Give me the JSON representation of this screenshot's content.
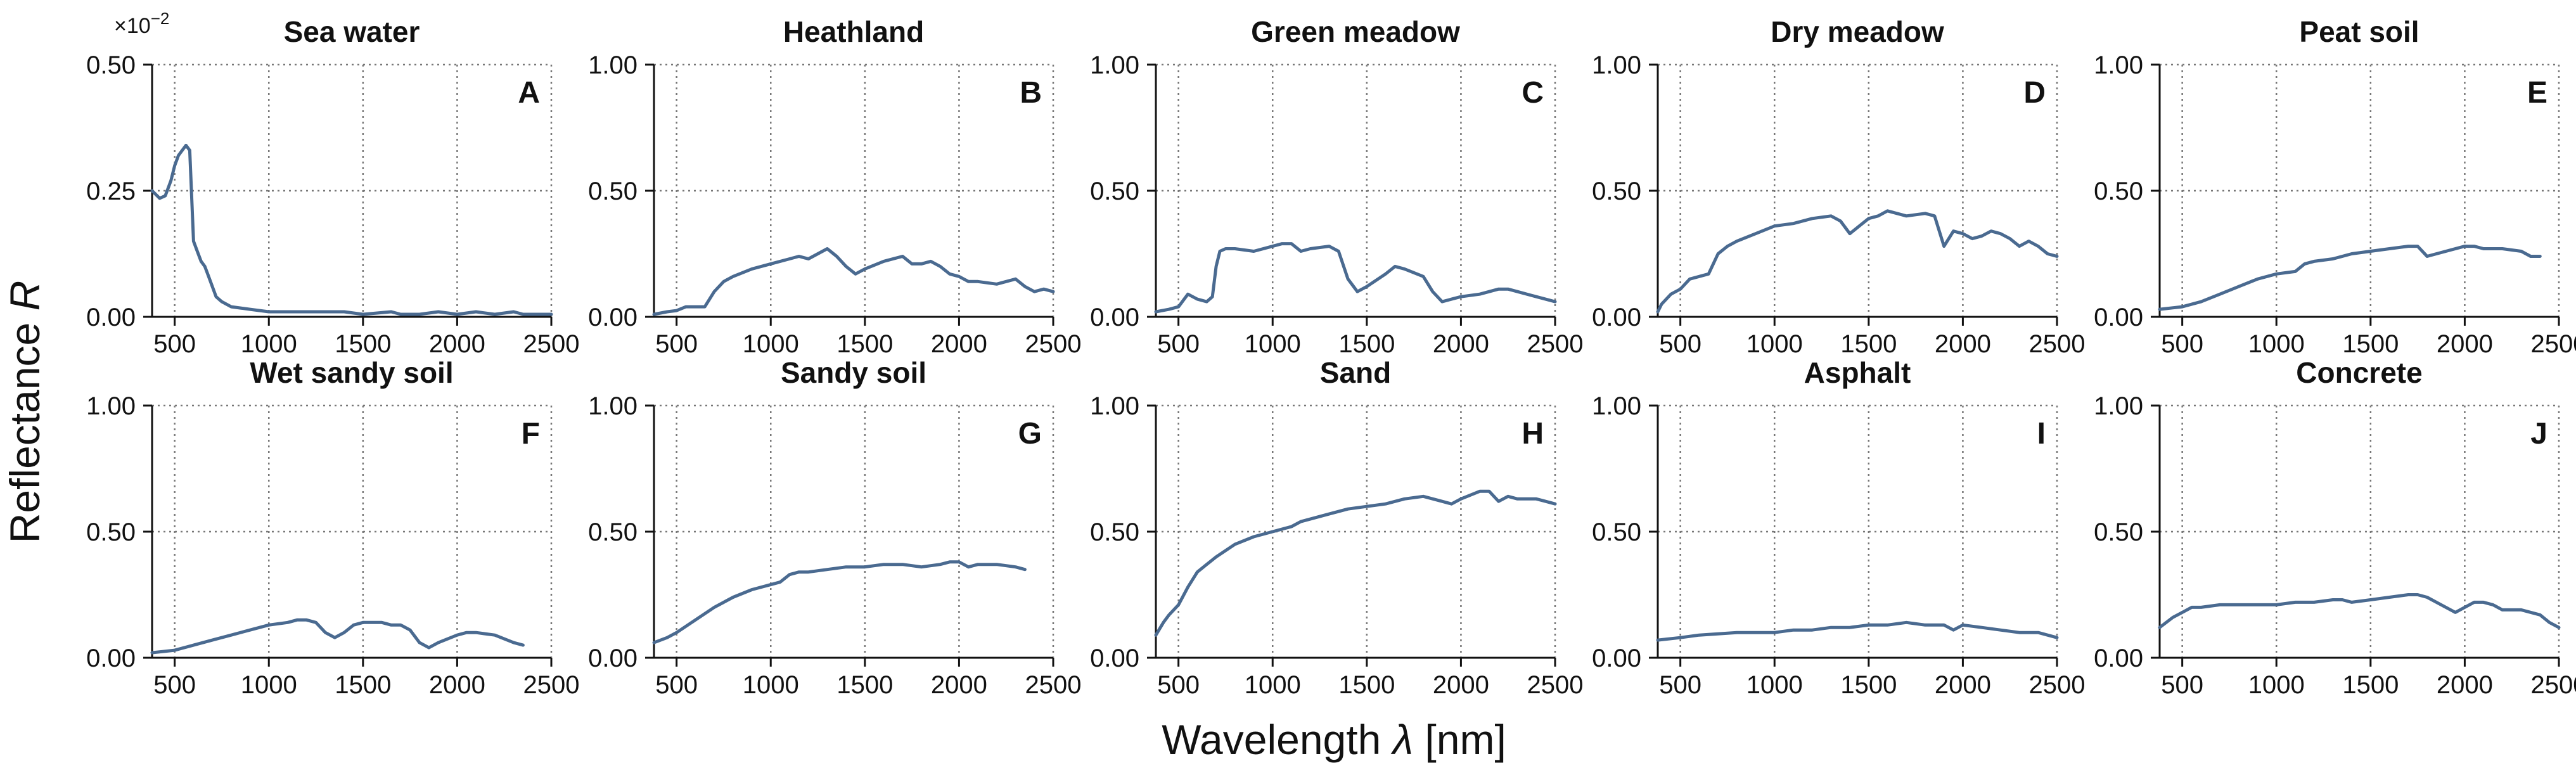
{
  "figure": {
    "xlabel_prefix": "Wavelength ",
    "xlabel_symbol": "λ",
    "xlabel_unit": " [nm]",
    "ylabel_prefix": "Reflectance ",
    "ylabel_symbol": "R",
    "line_color": "#4a6a90"
  },
  "chart_data": [
    {
      "type": "line",
      "id": "A",
      "letter": "A",
      "title": "Sea water",
      "xlim": [
        380,
        2500
      ],
      "ylim": [
        0,
        0.5
      ],
      "yticks": [
        "0.00",
        "0.25",
        "0.50"
      ],
      "ytick_values": [
        0,
        0.25,
        0.5
      ],
      "xticks": [
        "500",
        "1000",
        "1500",
        "2000",
        "2500"
      ],
      "xtick_values": [
        500,
        1000,
        1500,
        2000,
        2500
      ],
      "multiplier": "×10",
      "multiplier_exp": "−2",
      "series": [
        {
          "name": "Sea water",
          "x": [
            380,
            420,
            450,
            480,
            500,
            520,
            540,
            560,
            580,
            600,
            620,
            640,
            660,
            680,
            700,
            720,
            750,
            800,
            900,
            1000,
            1200,
            1400,
            1500,
            1650,
            1700,
            1800,
            1900,
            2000,
            2100,
            2200,
            2300,
            2350,
            2400,
            2500
          ],
          "y": [
            0.25,
            0.235,
            0.24,
            0.27,
            0.3,
            0.32,
            0.33,
            0.34,
            0.33,
            0.15,
            0.13,
            0.11,
            0.1,
            0.08,
            0.06,
            0.04,
            0.03,
            0.02,
            0.015,
            0.01,
            0.01,
            0.01,
            0.005,
            0.01,
            0.005,
            0.005,
            0.01,
            0.005,
            0.01,
            0.005,
            0.01,
            0.005,
            0.005,
            0.005
          ]
        }
      ]
    },
    {
      "type": "line",
      "id": "B",
      "letter": "B",
      "title": "Heathland",
      "xlim": [
        380,
        2500
      ],
      "ylim": [
        0,
        1.0
      ],
      "yticks": [
        "0.00",
        "0.50",
        "1.00"
      ],
      "ytick_values": [
        0,
        0.5,
        1.0
      ],
      "xticks": [
        "500",
        "1000",
        "1500",
        "2000",
        "2500"
      ],
      "xtick_values": [
        500,
        1000,
        1500,
        2000,
        2500
      ],
      "series": [
        {
          "name": "Heathland",
          "x": [
            380,
            450,
            500,
            550,
            600,
            650,
            700,
            750,
            800,
            900,
            1000,
            1100,
            1150,
            1200,
            1300,
            1350,
            1400,
            1450,
            1500,
            1600,
            1700,
            1750,
            1800,
            1850,
            1900,
            1950,
            2000,
            2050,
            2100,
            2200,
            2300,
            2350,
            2400,
            2450,
            2500
          ],
          "y": [
            0.01,
            0.02,
            0.025,
            0.04,
            0.04,
            0.04,
            0.1,
            0.14,
            0.16,
            0.19,
            0.21,
            0.23,
            0.24,
            0.23,
            0.27,
            0.24,
            0.2,
            0.17,
            0.19,
            0.22,
            0.24,
            0.21,
            0.21,
            0.22,
            0.2,
            0.17,
            0.16,
            0.14,
            0.14,
            0.13,
            0.15,
            0.12,
            0.1,
            0.11,
            0.1
          ]
        }
      ]
    },
    {
      "type": "line",
      "id": "C",
      "letter": "C",
      "title": "Green meadow",
      "xlim": [
        380,
        2500
      ],
      "ylim": [
        0,
        1.0
      ],
      "yticks": [
        "0.00",
        "0.50",
        "1.00"
      ],
      "ytick_values": [
        0,
        0.5,
        1.0
      ],
      "xticks": [
        "500",
        "1000",
        "1500",
        "2000",
        "2500"
      ],
      "xtick_values": [
        500,
        1000,
        1500,
        2000,
        2500
      ],
      "series": [
        {
          "name": "Green meadow",
          "x": [
            380,
            450,
            500,
            550,
            600,
            650,
            680,
            700,
            720,
            750,
            800,
            900,
            1000,
            1050,
            1100,
            1150,
            1200,
            1300,
            1350,
            1400,
            1450,
            1500,
            1600,
            1650,
            1700,
            1800,
            1850,
            1900,
            1950,
            2000,
            2100,
            2200,
            2250,
            2300,
            2400,
            2500
          ],
          "y": [
            0.02,
            0.03,
            0.04,
            0.09,
            0.07,
            0.06,
            0.08,
            0.2,
            0.26,
            0.27,
            0.27,
            0.26,
            0.28,
            0.29,
            0.29,
            0.26,
            0.27,
            0.28,
            0.26,
            0.15,
            0.1,
            0.12,
            0.17,
            0.2,
            0.19,
            0.16,
            0.1,
            0.06,
            0.07,
            0.08,
            0.09,
            0.11,
            0.11,
            0.1,
            0.08,
            0.06
          ]
        }
      ]
    },
    {
      "type": "line",
      "id": "D",
      "letter": "D",
      "title": "Dry meadow",
      "xlim": [
        380,
        2500
      ],
      "ylim": [
        0,
        1.0
      ],
      "yticks": [
        "0.00",
        "0.50",
        "1.00"
      ],
      "ytick_values": [
        0,
        0.5,
        1.0
      ],
      "xticks": [
        "500",
        "1000",
        "1500",
        "2000",
        "2500"
      ],
      "xtick_values": [
        500,
        1000,
        1500,
        2000,
        2500
      ],
      "series": [
        {
          "name": "Dry meadow",
          "x": [
            380,
            400,
            450,
            500,
            550,
            600,
            650,
            700,
            750,
            800,
            900,
            1000,
            1100,
            1200,
            1300,
            1350,
            1400,
            1450,
            1500,
            1550,
            1600,
            1650,
            1700,
            1800,
            1850,
            1900,
            1950,
            2000,
            2050,
            2100,
            2150,
            2200,
            2250,
            2300,
            2350,
            2400,
            2450,
            2500
          ],
          "y": [
            0.02,
            0.05,
            0.09,
            0.11,
            0.15,
            0.16,
            0.17,
            0.25,
            0.28,
            0.3,
            0.33,
            0.36,
            0.37,
            0.39,
            0.4,
            0.38,
            0.33,
            0.36,
            0.39,
            0.4,
            0.42,
            0.41,
            0.4,
            0.41,
            0.4,
            0.28,
            0.34,
            0.33,
            0.31,
            0.32,
            0.34,
            0.33,
            0.31,
            0.28,
            0.3,
            0.28,
            0.25,
            0.24
          ]
        }
      ]
    },
    {
      "type": "line",
      "id": "E",
      "letter": "E",
      "title": "Peat soil",
      "xlim": [
        380,
        2500
      ],
      "ylim": [
        0,
        1.0
      ],
      "yticks": [
        "0.00",
        "0.50",
        "1.00"
      ],
      "ytick_values": [
        0,
        0.5,
        1.0
      ],
      "xticks": [
        "500",
        "1000",
        "1500",
        "2000",
        "2500"
      ],
      "xtick_values": [
        500,
        1000,
        1500,
        2000,
        2500
      ],
      "series": [
        {
          "name": "Peat soil",
          "x": [
            380,
            500,
            600,
            700,
            800,
            900,
            1000,
            1100,
            1150,
            1200,
            1300,
            1400,
            1500,
            1600,
            1700,
            1750,
            1800,
            1850,
            1900,
            2000,
            2050,
            2100,
            2200,
            2300,
            2350,
            2400
          ],
          "y": [
            0.03,
            0.04,
            0.06,
            0.09,
            0.12,
            0.15,
            0.17,
            0.18,
            0.21,
            0.22,
            0.23,
            0.25,
            0.26,
            0.27,
            0.28,
            0.28,
            0.24,
            0.25,
            0.26,
            0.28,
            0.28,
            0.27,
            0.27,
            0.26,
            0.24,
            0.24
          ]
        }
      ]
    },
    {
      "type": "line",
      "id": "F",
      "letter": "F",
      "title": "Wet sandy soil",
      "xlim": [
        380,
        2500
      ],
      "ylim": [
        0,
        1.0
      ],
      "yticks": [
        "0.00",
        "0.50",
        "1.00"
      ],
      "ytick_values": [
        0,
        0.5,
        1.0
      ],
      "xticks": [
        "500",
        "1000",
        "1500",
        "2000",
        "2500"
      ],
      "xtick_values": [
        500,
        1000,
        1500,
        2000,
        2500
      ],
      "series": [
        {
          "name": "Wet sandy soil",
          "x": [
            380,
            500,
            600,
            700,
            800,
            900,
            1000,
            1100,
            1150,
            1200,
            1250,
            1300,
            1350,
            1400,
            1450,
            1500,
            1600,
            1650,
            1700,
            1750,
            1800,
            1850,
            1900,
            2000,
            2050,
            2100,
            2200,
            2300,
            2350
          ],
          "y": [
            0.02,
            0.03,
            0.05,
            0.07,
            0.09,
            0.11,
            0.13,
            0.14,
            0.15,
            0.15,
            0.14,
            0.1,
            0.08,
            0.1,
            0.13,
            0.14,
            0.14,
            0.13,
            0.13,
            0.11,
            0.06,
            0.04,
            0.06,
            0.09,
            0.1,
            0.1,
            0.09,
            0.06,
            0.05
          ]
        }
      ]
    },
    {
      "type": "line",
      "id": "G",
      "letter": "G",
      "title": "Sandy soil",
      "xlim": [
        380,
        2500
      ],
      "ylim": [
        0,
        1.0
      ],
      "yticks": [
        "0.00",
        "0.50",
        "1.00"
      ],
      "ytick_values": [
        0,
        0.5,
        1.0
      ],
      "xticks": [
        "500",
        "1000",
        "1500",
        "2000",
        "2500"
      ],
      "xtick_values": [
        500,
        1000,
        1500,
        2000,
        2500
      ],
      "series": [
        {
          "name": "Sandy soil",
          "x": [
            380,
            450,
            500,
            600,
            700,
            800,
            900,
            1000,
            1050,
            1100,
            1150,
            1200,
            1300,
            1400,
            1500,
            1600,
            1700,
            1800,
            1900,
            1950,
            2000,
            2050,
            2100,
            2200,
            2300,
            2350
          ],
          "y": [
            0.06,
            0.08,
            0.1,
            0.15,
            0.2,
            0.24,
            0.27,
            0.29,
            0.3,
            0.33,
            0.34,
            0.34,
            0.35,
            0.36,
            0.36,
            0.37,
            0.37,
            0.36,
            0.37,
            0.38,
            0.38,
            0.36,
            0.37,
            0.37,
            0.36,
            0.35
          ]
        }
      ]
    },
    {
      "type": "line",
      "id": "H",
      "letter": "H",
      "title": "Sand",
      "xlim": [
        380,
        2500
      ],
      "ylim": [
        0,
        1.0
      ],
      "yticks": [
        "0.00",
        "0.50",
        "1.00"
      ],
      "ytick_values": [
        0,
        0.5,
        1.0
      ],
      "xticks": [
        "500",
        "1000",
        "1500",
        "2000",
        "2500"
      ],
      "xtick_values": [
        500,
        1000,
        1500,
        2000,
        2500
      ],
      "series": [
        {
          "name": "Sand",
          "x": [
            380,
            420,
            450,
            500,
            550,
            600,
            650,
            700,
            800,
            900,
            1000,
            1100,
            1150,
            1200,
            1300,
            1400,
            1500,
            1600,
            1700,
            1800,
            1900,
            1950,
            2000,
            2100,
            2150,
            2200,
            2250,
            2300,
            2400,
            2450,
            2500
          ],
          "y": [
            0.09,
            0.14,
            0.17,
            0.21,
            0.28,
            0.34,
            0.37,
            0.4,
            0.45,
            0.48,
            0.5,
            0.52,
            0.54,
            0.55,
            0.57,
            0.59,
            0.6,
            0.61,
            0.63,
            0.64,
            0.62,
            0.61,
            0.63,
            0.66,
            0.66,
            0.62,
            0.64,
            0.63,
            0.63,
            0.62,
            0.61
          ]
        }
      ]
    },
    {
      "type": "line",
      "id": "I",
      "letter": "I",
      "title": "Asphalt",
      "xlim": [
        380,
        2500
      ],
      "ylim": [
        0,
        1.0
      ],
      "yticks": [
        "0.00",
        "0.50",
        "1.00"
      ],
      "ytick_values": [
        0,
        0.5,
        1.0
      ],
      "xticks": [
        "500",
        "1000",
        "1500",
        "2000",
        "2500"
      ],
      "xtick_values": [
        500,
        1000,
        1500,
        2000,
        2500
      ],
      "series": [
        {
          "name": "Asphalt",
          "x": [
            380,
            500,
            600,
            800,
            1000,
            1100,
            1200,
            1300,
            1400,
            1500,
            1600,
            1700,
            1800,
            1900,
            1950,
            2000,
            2100,
            2200,
            2300,
            2400,
            2450,
            2500
          ],
          "y": [
            0.07,
            0.08,
            0.09,
            0.1,
            0.1,
            0.11,
            0.11,
            0.12,
            0.12,
            0.13,
            0.13,
            0.14,
            0.13,
            0.13,
            0.11,
            0.13,
            0.12,
            0.11,
            0.1,
            0.1,
            0.09,
            0.08
          ]
        }
      ]
    },
    {
      "type": "line",
      "id": "J",
      "letter": "J",
      "title": "Concrete",
      "xlim": [
        380,
        2500
      ],
      "ylim": [
        0,
        1.0
      ],
      "yticks": [
        "0.00",
        "0.50",
        "1.00"
      ],
      "ytick_values": [
        0,
        0.5,
        1.0
      ],
      "xticks": [
        "500",
        "1000",
        "1500",
        "2000",
        "2500"
      ],
      "xtick_values": [
        500,
        1000,
        1500,
        2000,
        2500
      ],
      "series": [
        {
          "name": "Concrete",
          "x": [
            380,
            450,
            500,
            550,
            600,
            700,
            800,
            900,
            1000,
            1100,
            1200,
            1300,
            1350,
            1400,
            1500,
            1600,
            1700,
            1750,
            1800,
            1850,
            1900,
            1950,
            2000,
            2050,
            2100,
            2150,
            2200,
            2300,
            2400,
            2450,
            2500
          ],
          "y": [
            0.12,
            0.16,
            0.18,
            0.2,
            0.2,
            0.21,
            0.21,
            0.21,
            0.21,
            0.22,
            0.22,
            0.23,
            0.23,
            0.22,
            0.23,
            0.24,
            0.25,
            0.25,
            0.24,
            0.22,
            0.2,
            0.18,
            0.2,
            0.22,
            0.22,
            0.21,
            0.19,
            0.19,
            0.17,
            0.14,
            0.12
          ]
        }
      ]
    }
  ]
}
